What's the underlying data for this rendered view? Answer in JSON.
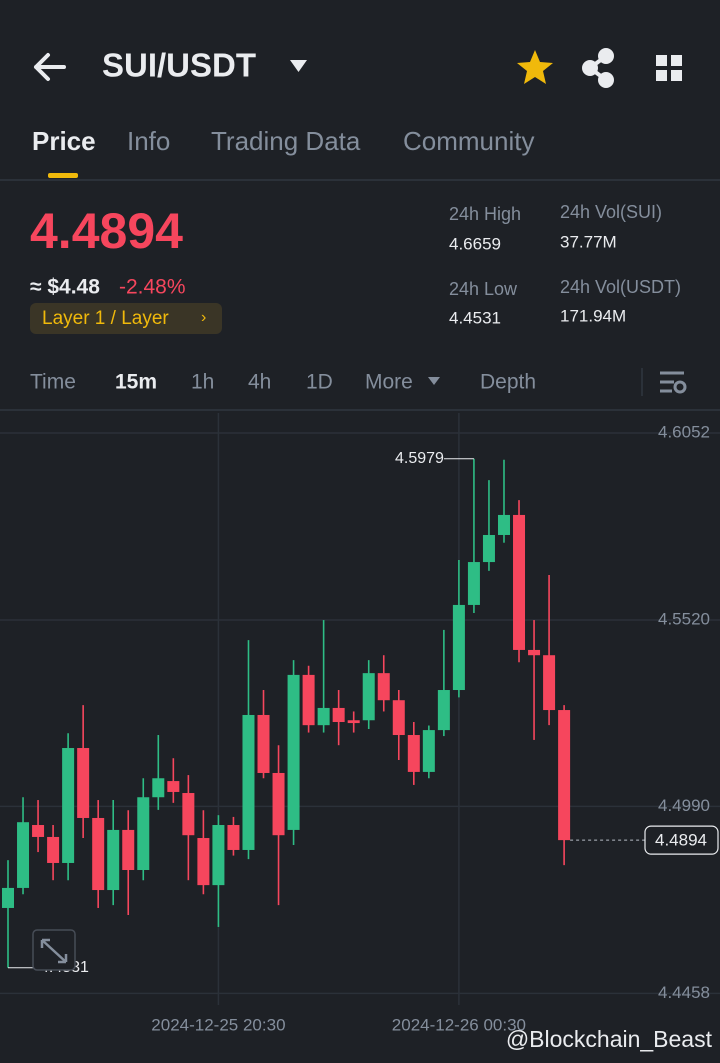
{
  "header": {
    "pair": "SUI/USDT",
    "tabs": [
      "Price",
      "Info",
      "Trading Data",
      "Community"
    ]
  },
  "summary": {
    "price": "4.4894",
    "usd": "≈ $4.48",
    "change": "-2.48%",
    "tag": "Layer 1 / Layer",
    "stats": [
      {
        "label": "24h High",
        "value": "4.6659"
      },
      {
        "label": "24h Vol(SUI)",
        "value": "37.77M"
      },
      {
        "label": "24h Low",
        "value": "4.4531"
      },
      {
        "label": "24h Vol(USDT)",
        "value": "171.94M"
      }
    ]
  },
  "intervals": [
    "Time",
    "15m",
    "1h",
    "4h",
    "1D",
    "More",
    "Depth"
  ],
  "watermark": "@Blockchain_Beast",
  "chart_data": {
    "type": "candlestick",
    "up_color": "#2ebd85",
    "down_color": "#f6465d",
    "open": [
      4.4701,
      4.4758,
      4.4937,
      4.4903,
      4.4829,
      4.5156,
      4.4957,
      4.4752,
      4.4923,
      4.4809,
      4.5016,
      4.5062,
      4.5028,
      4.49,
      4.4766,
      4.4937,
      4.4866,
      4.525,
      4.5085,
      4.4923,
      4.5364,
      4.5221,
      4.527,
      4.5235,
      4.5235,
      4.5369,
      4.5292,
      4.5193,
      4.5088,
      4.5207,
      4.5321,
      4.5563,
      4.5685,
      4.5762,
      4.5819,
      4.5435,
      4.542,
      4.5264
    ],
    "high": [
      4.4837,
      4.5016,
      4.5008,
      4.4937,
      4.5198,
      4.5278,
      4.5008,
      4.5008,
      4.4979,
      4.507,
      4.5193,
      4.5127,
      4.5079,
      4.4979,
      4.4965,
      4.496,
      4.5463,
      4.5321,
      4.5164,
      4.5406,
      4.539,
      4.552,
      4.5321,
      4.526,
      4.5406,
      4.542,
      4.5321,
      4.523,
      4.522,
      4.5492,
      4.5691,
      4.5979,
      4.5918,
      4.5976,
      4.5861,
      4.552,
      4.5648,
      4.5278
    ],
    "low": [
      4.4531,
      4.474,
      4.486,
      4.478,
      4.478,
      4.49,
      4.4701,
      4.4709,
      4.4681,
      4.478,
      4.498,
      4.5,
      4.478,
      4.474,
      4.4647,
      4.485,
      4.484,
      4.507,
      4.4709,
      4.488,
      4.52,
      4.52,
      4.5164,
      4.52,
      4.521,
      4.526,
      4.5122,
      4.5051,
      4.507,
      4.519,
      4.53,
      4.554,
      4.566,
      4.574,
      4.54,
      4.5179,
      4.5221,
      4.4823
    ],
    "close": [
      4.4758,
      4.4945,
      4.4903,
      4.4829,
      4.5156,
      4.4957,
      4.4752,
      4.4923,
      4.4809,
      4.5016,
      4.507,
      4.5031,
      4.4908,
      4.4766,
      4.4937,
      4.4866,
      4.525,
      4.5085,
      4.4908,
      4.5364,
      4.5221,
      4.527,
      4.523,
      4.5227,
      4.5369,
      4.5292,
      4.5193,
      4.5088,
      4.5207,
      4.5321,
      4.5563,
      4.5685,
      4.5762,
      4.5819,
      4.5435,
      4.542,
      4.5264,
      4.4894
    ],
    "ylim": [
      4.4425,
      4.6109
    ],
    "yticks": [
      4.6052,
      {
        "value": 4.552,
        "label": "4.5520"
      },
      {
        "value": 4.499,
        "label": "4.4990"
      },
      4.4458
    ],
    "xlim": [
      -0.5,
      40.5
    ],
    "xticks": [
      {
        "value": 14,
        "label": "2024-12-25 20:30"
      },
      {
        "value": 30,
        "label": "2024-12-26 00:30"
      }
    ],
    "high_mark": {
      "index": 31,
      "value": 4.5979
    },
    "low_mark": {
      "index": 0,
      "value": 4.4531
    },
    "last_price": 4.4894,
    "grid": true
  }
}
